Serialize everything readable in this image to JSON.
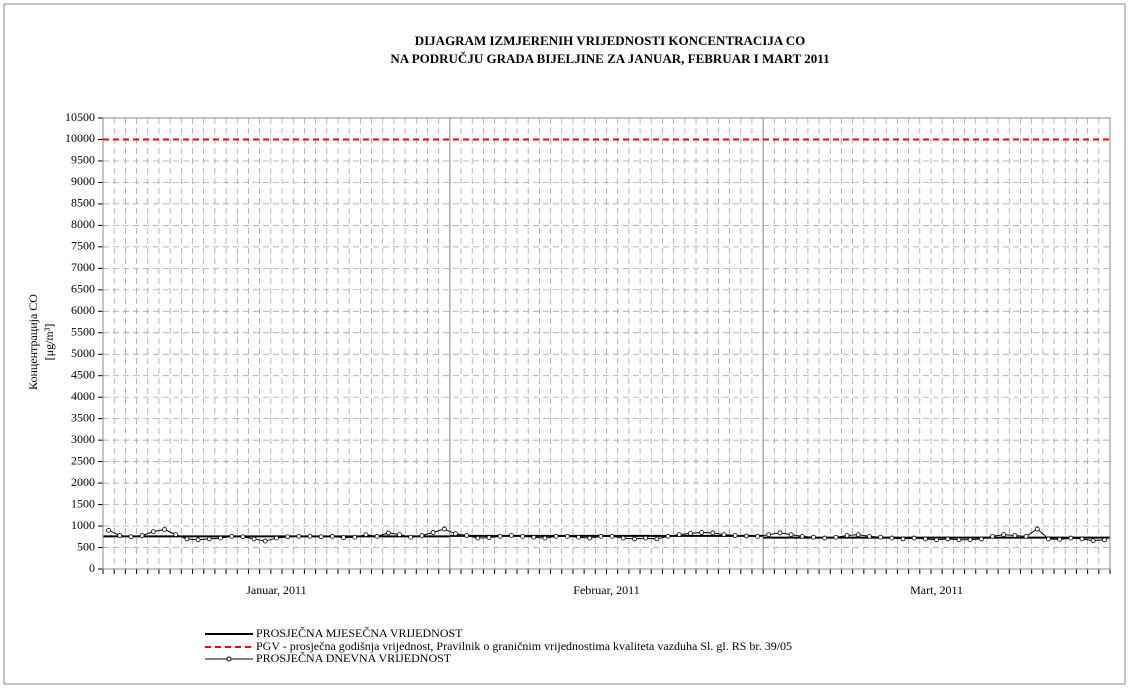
{
  "chart_data": {
    "type": "line",
    "title": [
      "DIJAGRAM IZMJERENIH VRIJEDNOSTI KONCENTRACIJA  CO",
      "NA PODRUČJU GRADA BIJELJINE ZA JANUAR, FEBRUAR I MART  2011"
    ],
    "y_label": [
      "Концентрација CO",
      "[μg/m³]"
    ],
    "months": [
      {
        "label": "Januar, 2011",
        "days": 31
      },
      {
        "label": "Februar, 2011",
        "days": 28
      },
      {
        "label": "Mart, 2011",
        "days": 31
      }
    ],
    "ylim": [
      0,
      10500
    ],
    "yticks": [
      0,
      500,
      1000,
      1500,
      2000,
      2500,
      3000,
      3500,
      4000,
      4500,
      5000,
      5500,
      6000,
      6500,
      7000,
      7500,
      8000,
      8500,
      9000,
      9500,
      10000,
      10500
    ],
    "grid": true,
    "monthly": {
      "name": "PROSJEČNA MJESEČNA VRIJEDNOST",
      "color": "#000000",
      "values": [
        760,
        770,
        730
      ]
    },
    "reference": {
      "name": "PGV - prosječna godišnja vrijednost, Pravilnik o graničnim vrijednostima kvaliteta vazduha Sl. gl. RS br. 39/05",
      "color": "#ff0000",
      "value": 10000
    },
    "daily": {
      "name": "PROSJEČNA DNEVNA VRIJEDNOST",
      "color": "#000000",
      "values": [
        900,
        780,
        750,
        780,
        870,
        920,
        800,
        700,
        680,
        700,
        720,
        760,
        750,
        700,
        650,
        720,
        750,
        760,
        760,
        750,
        760,
        730,
        740,
        800,
        760,
        840,
        800,
        740,
        780,
        850,
        930,
        820,
        780,
        720,
        730,
        760,
        780,
        760,
        740,
        720,
        760,
        760,
        740,
        720,
        760,
        760,
        720,
        700,
        720,
        700,
        760,
        800,
        830,
        850,
        840,
        800,
        780,
        770,
        760,
        800,
        840,
        800,
        760,
        740,
        720,
        740,
        780,
        800,
        760,
        740,
        720,
        700,
        720,
        700,
        680,
        700,
        680,
        680,
        700,
        760,
        800,
        780,
        760,
        930,
        700,
        690,
        720,
        700,
        660,
        680
      ]
    }
  }
}
